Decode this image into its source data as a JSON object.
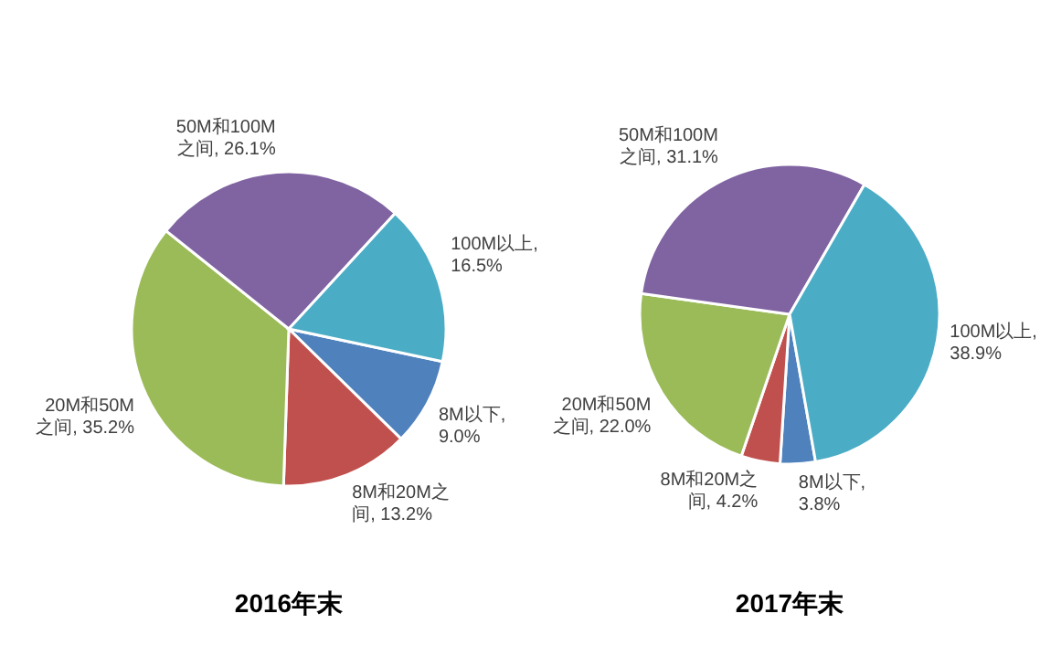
{
  "chart_data": [
    {
      "type": "pie",
      "title": "2016年末",
      "values": [
        9.0,
        13.2,
        35.2,
        26.1,
        16.5
      ],
      "value_labels": [
        "8M以下, 9.0%",
        "8M和20M之间, 13.2%",
        "20M和50M之间, 35.2%",
        "50M和100M之间, 26.1%",
        "100M以上, 16.5%"
      ],
      "colors": [
        "#4f81bd",
        "#c0504d",
        "#9bbb59",
        "#8064a2",
        "#4bacc6"
      ]
    },
    {
      "type": "pie",
      "title": "2017年末",
      "values": [
        3.8,
        4.2,
        22.0,
        31.1,
        38.9
      ],
      "value_labels": [
        "8M以下, 3.8%",
        "8M和20M之间, 4.2%",
        "20M和50M之间, 22.0%",
        "50M和100M之间, 31.1%",
        "100M以上, 38.9%"
      ],
      "colors": [
        "#4f81bd",
        "#c0504d",
        "#9bbb59",
        "#8064a2",
        "#4bacc6"
      ]
    }
  ]
}
